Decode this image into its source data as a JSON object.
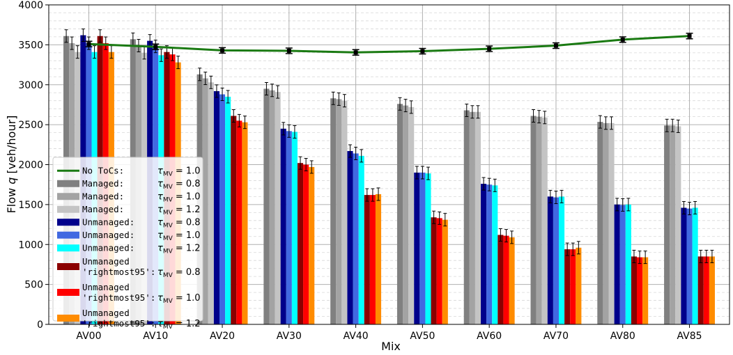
{
  "chart_data": {
    "type": "bar",
    "xlabel": "Mix",
    "ylabel": "Flow q [veh/hour]",
    "ylim": [
      0,
      4000
    ],
    "yticks": [
      0,
      500,
      1000,
      1500,
      2000,
      2500,
      3000,
      3500,
      4000
    ],
    "grid": true,
    "legend_position": "lower-left",
    "categories": [
      "AV00",
      "AV10",
      "AV20",
      "AV30",
      "AV40",
      "AV50",
      "AV60",
      "AV70",
      "AV80",
      "AV85"
    ],
    "line_series": {
      "name": "No ToCs:",
      "tau": "1.0",
      "color": "#1a7a12",
      "values": [
        3510,
        3475,
        3430,
        3425,
        3405,
        3420,
        3450,
        3490,
        3565,
        3610
      ]
    },
    "series": [
      {
        "name": "Managed:",
        "tau": "0.8",
        "color": "#808080",
        "values": [
          3610,
          3570,
          3130,
          2950,
          2830,
          2760,
          2680,
          2610,
          2535,
          2490
        ]
      },
      {
        "name": "Managed:",
        "tau": "1.0",
        "color": "#a3a3a3",
        "values": [
          3520,
          3490,
          3080,
          2930,
          2820,
          2740,
          2660,
          2600,
          2520,
          2490
        ]
      },
      {
        "name": "Managed:",
        "tau": "1.2",
        "color": "#c4c4c4",
        "values": [
          3410,
          3400,
          3030,
          2910,
          2800,
          2720,
          2660,
          2590,
          2520,
          2480
        ]
      },
      {
        "name": "Unmanaged:",
        "tau": "0.8",
        "color": "#00008b",
        "values": [
          3620,
          3550,
          2920,
          2450,
          2170,
          1900,
          1760,
          1600,
          1500,
          1460
        ]
      },
      {
        "name": "Unmanaged:",
        "tau": "1.0",
        "color": "#4169e1",
        "values": [
          3520,
          3480,
          2880,
          2420,
          2140,
          1900,
          1750,
          1590,
          1495,
          1450
        ]
      },
      {
        "name": "Unmanaged:",
        "tau": "1.2",
        "color": "#00ffff",
        "values": [
          3410,
          3370,
          2850,
          2410,
          2110,
          1890,
          1740,
          1600,
          1500,
          1460
        ]
      },
      {
        "name": "Unmanaged\n'rightmost95':",
        "tau": "0.8",
        "color": "#8b0000",
        "values": [
          3610,
          3410,
          2610,
          2020,
          1620,
          1340,
          1120,
          940,
          850,
          850
        ]
      },
      {
        "name": "Unmanaged\n'rightmost95':",
        "tau": "1.0",
        "color": "#ff0000",
        "values": [
          3520,
          3380,
          2550,
          2000,
          1620,
          1330,
          1110,
          940,
          840,
          850
        ]
      },
      {
        "name": "Unmanaged\n'rightmost95':",
        "tau": "1.2",
        "color": "#ff8c00",
        "values": [
          3410,
          3280,
          2530,
          1970,
          1630,
          1310,
          1090,
          960,
          840,
          850
        ]
      }
    ],
    "tau_symbol": "τ",
    "tau_subscript": "MV"
  }
}
